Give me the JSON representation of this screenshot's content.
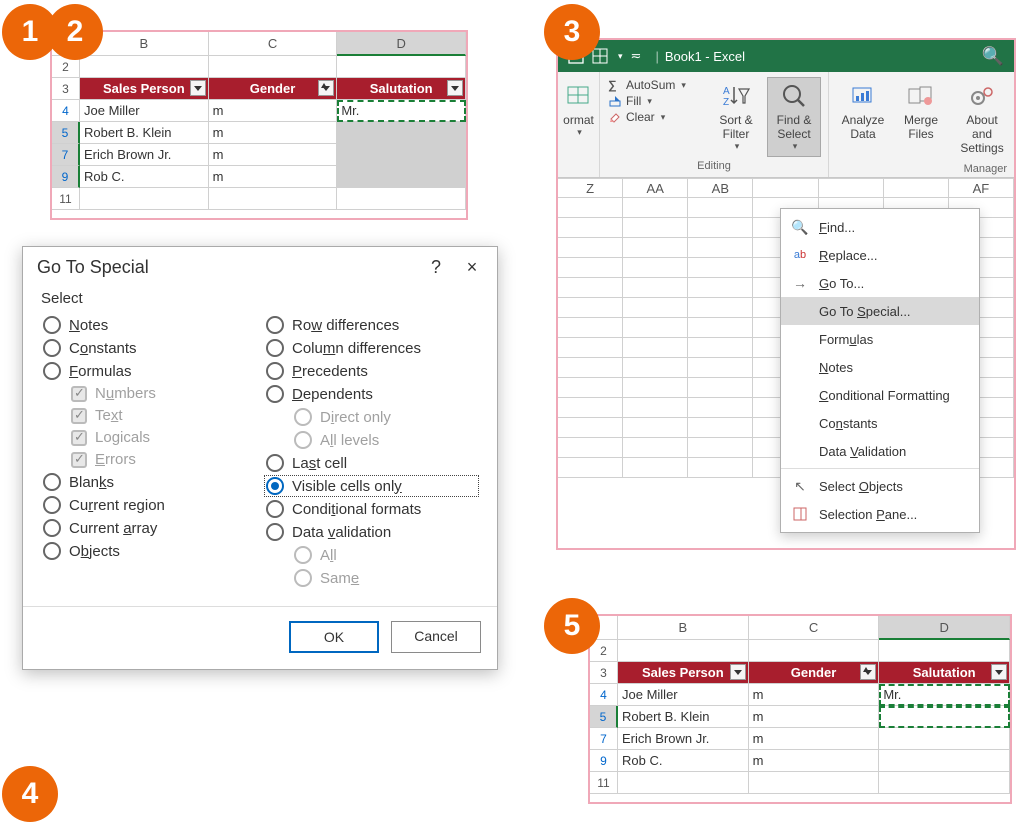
{
  "badges": {
    "b1": "1",
    "b2": "2",
    "b3": "3",
    "b4": "4",
    "b5": "5"
  },
  "colors": {
    "badge": "#ec6608",
    "panel_border": "#f0a8b8",
    "excel_green": "#217346",
    "table_header": "#a81e2d",
    "accent_blue": "#0067c0",
    "marquee_green": "#1a7f37"
  },
  "table1": {
    "col_letters": [
      "B",
      "C",
      "D"
    ],
    "selected_col_index": 2,
    "row_numbers": [
      "2",
      "3",
      "4",
      "5",
      "7",
      "9",
      "11"
    ],
    "blue_rows": [
      "4",
      "5",
      "7",
      "9"
    ],
    "selected_rows": [
      "5",
      "7",
      "9"
    ],
    "headers": [
      "Sales Person",
      "Gender",
      "Salutation"
    ],
    "filter_active_col": 1,
    "rows": [
      {
        "r": "4",
        "cells": [
          "Joe Miller",
          "m",
          "Mr."
        ],
        "marquee_col": 2
      },
      {
        "r": "5",
        "cells": [
          "Robert B. Klein",
          "m",
          ""
        ],
        "shade_col": 2
      },
      {
        "r": "7",
        "cells": [
          "Erich Brown Jr.",
          "m",
          ""
        ],
        "shade_col": 2
      },
      {
        "r": "9",
        "cells": [
          "Rob C.",
          "m",
          ""
        ],
        "shade_col": 2
      }
    ]
  },
  "table5": {
    "col_letters": [
      "B",
      "C",
      "D"
    ],
    "selected_col_index": 2,
    "row_numbers": [
      "2",
      "3",
      "4",
      "5",
      "7",
      "9",
      "11"
    ],
    "blue_rows": [
      "4",
      "5",
      "7",
      "9"
    ],
    "headers": [
      "Sales Person",
      "Gender",
      "Salutation"
    ],
    "filter_active_col": 1,
    "rows": [
      {
        "r": "4",
        "cells": [
          "Joe Miller",
          "m",
          "Mr."
        ],
        "marquee_col": 2
      },
      {
        "r": "5",
        "cells": [
          "Robert B. Klein",
          "m",
          ""
        ],
        "marquee_col": 2,
        "sel": true
      },
      {
        "r": "7",
        "cells": [
          "Erich Brown Jr.",
          "m",
          ""
        ]
      },
      {
        "r": "9",
        "cells": [
          "Rob C.",
          "m",
          ""
        ]
      }
    ]
  },
  "dialog": {
    "title": "Go To Special",
    "help": "?",
    "close": "×",
    "section": "Select",
    "left": [
      {
        "label": "Notes",
        "u": "N",
        "type": "radio"
      },
      {
        "label": "Constants",
        "u": "o",
        "type": "radio"
      },
      {
        "label": "Formulas",
        "u": "F",
        "type": "radio"
      },
      {
        "label": "Numbers",
        "u": "u",
        "type": "check",
        "indent": true,
        "dis": true
      },
      {
        "label": "Text",
        "u": "x",
        "type": "check",
        "indent": true,
        "dis": true
      },
      {
        "label": "Logicals",
        "u": "g",
        "type": "check",
        "indent": true,
        "dis": true
      },
      {
        "label": "Errors",
        "u": "E",
        "type": "check",
        "indent": true,
        "dis": true
      },
      {
        "label": "Blanks",
        "u": "k",
        "type": "radio"
      },
      {
        "label": "Current region",
        "u": "r",
        "type": "radio"
      },
      {
        "label": "Current array",
        "u": "a",
        "type": "radio"
      },
      {
        "label": "Objects",
        "u": "b",
        "type": "radio"
      }
    ],
    "right": [
      {
        "label": "Row differences",
        "u": "w",
        "type": "radio"
      },
      {
        "label": "Column differences",
        "u": "m",
        "type": "radio"
      },
      {
        "label": "Precedents",
        "u": "P",
        "type": "radio"
      },
      {
        "label": "Dependents",
        "u": "D",
        "type": "radio"
      },
      {
        "label": "Direct only",
        "u": "i",
        "type": "radio",
        "indent": true,
        "dis": true
      },
      {
        "label": "All levels",
        "u": "l",
        "type": "radio",
        "indent": true,
        "dis": true
      },
      {
        "label": "Last cell",
        "u": "s",
        "type": "radio"
      },
      {
        "label": "Visible cells only",
        "u": "y",
        "type": "radio",
        "selected": true,
        "boxed": true
      },
      {
        "label": "Conditional formats",
        "u": "t",
        "type": "radio"
      },
      {
        "label": "Data validation",
        "u": "v",
        "type": "radio"
      },
      {
        "label": "All",
        "u": "l",
        "type": "radio",
        "indent": true,
        "dis": true
      },
      {
        "label": "Same",
        "u": "e",
        "type": "radio",
        "indent": true,
        "dis": true
      }
    ],
    "ok": "OK",
    "cancel": "Cancel"
  },
  "ribbon": {
    "doc_title": "Book1  -  Excel",
    "format_label": "ormat",
    "autosum": "AutoSum",
    "fill": "Fill",
    "clear": "Clear",
    "editing_group": "Editing",
    "sort_filter": "Sort & Filter",
    "find_select": "Find & Select",
    "analyze": "Analyze Data",
    "merge": "Merge Files",
    "about": "About and Settings",
    "manager_group": "Manager",
    "grid_cols": [
      "Z",
      "AA",
      "AB",
      "",
      "",
      "",
      "AF"
    ],
    "menu": [
      {
        "label": "Find...",
        "u": "F",
        "icon": "search"
      },
      {
        "label": "Replace...",
        "u": "R",
        "icon": "replace"
      },
      {
        "label": "Go To...",
        "u": "G",
        "icon": "arrow"
      },
      {
        "label": "Go To Special...",
        "u": "S",
        "icon": "",
        "hl": true
      },
      {
        "label": "Formulas",
        "u": "u",
        "icon": ""
      },
      {
        "label": "Notes",
        "u": "N",
        "icon": ""
      },
      {
        "label": "Conditional Formatting",
        "u": "C",
        "icon": ""
      },
      {
        "label": "Constants",
        "u": "n",
        "icon": ""
      },
      {
        "label": "Data Validation",
        "u": "V",
        "icon": ""
      },
      {
        "label": "Select Objects",
        "u": "O",
        "icon": "pointer",
        "sep_before": true
      },
      {
        "label": "Selection Pane...",
        "u": "P",
        "icon": "pane"
      }
    ]
  }
}
